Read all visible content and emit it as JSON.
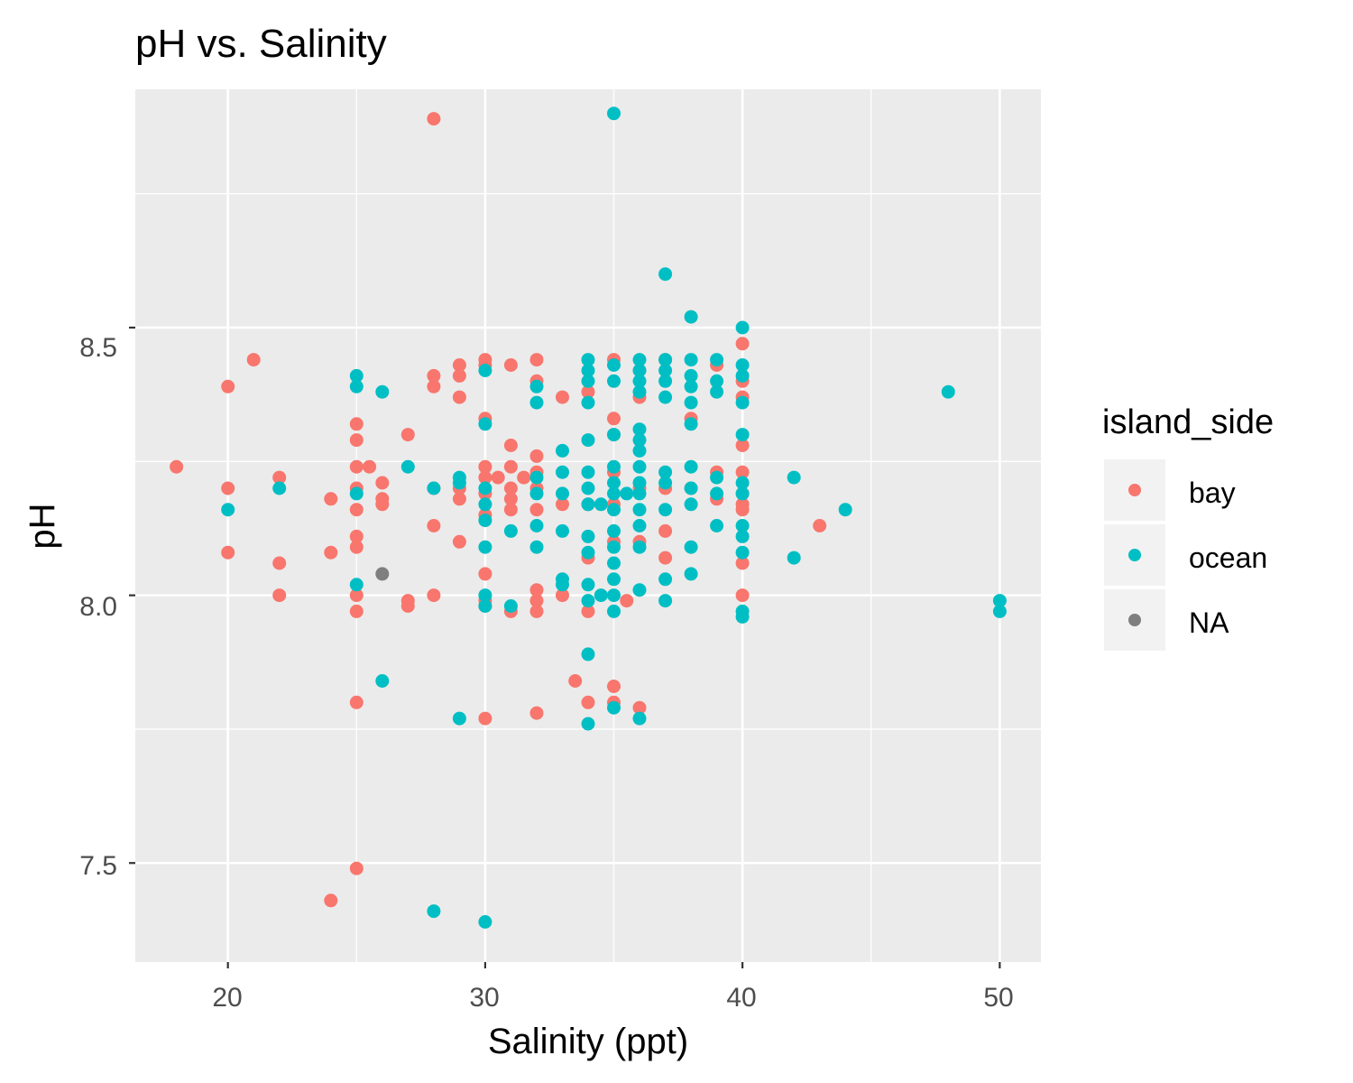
{
  "chart_data": {
    "type": "scatter",
    "title": "pH vs. Salinity",
    "xlabel": "Salinity (ppt)",
    "ylabel": "pH",
    "xlim": [
      16.4,
      51.6
    ],
    "ylim": [
      7.315,
      8.945
    ],
    "x_ticks": [
      "20",
      "30",
      "40",
      "50"
    ],
    "y_ticks": [
      "7.5",
      "8.0",
      "8.5"
    ],
    "x_tick_values": [
      20,
      30,
      40,
      50
    ],
    "y_tick_values": [
      7.5,
      8.0,
      8.5
    ],
    "grid": true,
    "panel_background": "#ebebeb",
    "legend": {
      "title": "island_side",
      "position": "right",
      "entries": [
        {
          "label": "bay",
          "color": "#f8766d"
        },
        {
          "label": "ocean",
          "color": "#00bfc4"
        },
        {
          "label": "NA",
          "color": "#7f7f7f"
        }
      ]
    },
    "series": [
      {
        "name": "bay",
        "color": "#f8766d",
        "points": [
          [
            18,
            8.24
          ],
          [
            20,
            8.39
          ],
          [
            20,
            8.2
          ],
          [
            20,
            8.08
          ],
          [
            21,
            8.44
          ],
          [
            22,
            8.22
          ],
          [
            22,
            8.06
          ],
          [
            22,
            8.0
          ],
          [
            24,
            8.18
          ],
          [
            24,
            8.08
          ],
          [
            24,
            7.43
          ],
          [
            25,
            8.32
          ],
          [
            25,
            8.29
          ],
          [
            25,
            8.24
          ],
          [
            25,
            8.2
          ],
          [
            25,
            8.16
          ],
          [
            25,
            8.11
          ],
          [
            25,
            8.09
          ],
          [
            25,
            8.0
          ],
          [
            25,
            7.97
          ],
          [
            25,
            7.8
          ],
          [
            25,
            7.49
          ],
          [
            25.5,
            8.24
          ],
          [
            26,
            8.21
          ],
          [
            26,
            8.18
          ],
          [
            26,
            8.17
          ],
          [
            27,
            8.3
          ],
          [
            27,
            7.99
          ],
          [
            27,
            7.98
          ],
          [
            28,
            8.89
          ],
          [
            28,
            8.41
          ],
          [
            28,
            8.39
          ],
          [
            28,
            8.2
          ],
          [
            28,
            8.13
          ],
          [
            28,
            8.0
          ],
          [
            29,
            8.43
          ],
          [
            29,
            8.41
          ],
          [
            29,
            8.37
          ],
          [
            29,
            8.2
          ],
          [
            29,
            8.18
          ],
          [
            29,
            8.1
          ],
          [
            30,
            8.44
          ],
          [
            30,
            8.43
          ],
          [
            30,
            8.33
          ],
          [
            30,
            8.24
          ],
          [
            30,
            8.22
          ],
          [
            30,
            8.19
          ],
          [
            30,
            8.15
          ],
          [
            30,
            8.04
          ],
          [
            30,
            7.99
          ],
          [
            30,
            7.98
          ],
          [
            30,
            7.77
          ],
          [
            30.5,
            8.22
          ],
          [
            31,
            8.43
          ],
          [
            31,
            8.28
          ],
          [
            31,
            8.24
          ],
          [
            31,
            8.2
          ],
          [
            31,
            8.18
          ],
          [
            31,
            8.16
          ],
          [
            31,
            7.97
          ],
          [
            31.5,
            8.22
          ],
          [
            32,
            8.44
          ],
          [
            32,
            8.4
          ],
          [
            32,
            8.26
          ],
          [
            32,
            8.23
          ],
          [
            32,
            8.2
          ],
          [
            32,
            8.16
          ],
          [
            32,
            8.01
          ],
          [
            32,
            7.99
          ],
          [
            32,
            7.97
          ],
          [
            32,
            7.78
          ],
          [
            33,
            8.37
          ],
          [
            33,
            8.17
          ],
          [
            33,
            8.0
          ],
          [
            33.5,
            7.84
          ],
          [
            34,
            8.38
          ],
          [
            34,
            8.17
          ],
          [
            34,
            8.07
          ],
          [
            34,
            7.97
          ],
          [
            34,
            7.8
          ],
          [
            35,
            8.44
          ],
          [
            35,
            8.33
          ],
          [
            35,
            8.3
          ],
          [
            35,
            8.23
          ],
          [
            35,
            8.17
          ],
          [
            35,
            8.1
          ],
          [
            35,
            7.83
          ],
          [
            35,
            7.8
          ],
          [
            35.5,
            7.99
          ],
          [
            36,
            8.42
          ],
          [
            36,
            8.37
          ],
          [
            36,
            8.2
          ],
          [
            36,
            8.1
          ],
          [
            36,
            7.79
          ],
          [
            37,
            8.44
          ],
          [
            37,
            8.2
          ],
          [
            37,
            8.12
          ],
          [
            37,
            8.07
          ],
          [
            38,
            8.33
          ],
          [
            38,
            8.2
          ],
          [
            39,
            8.43
          ],
          [
            39,
            8.23
          ],
          [
            39,
            8.18
          ],
          [
            40,
            8.47
          ],
          [
            40,
            8.4
          ],
          [
            40,
            8.37
          ],
          [
            40,
            8.28
          ],
          [
            40,
            8.23
          ],
          [
            40,
            8.19
          ],
          [
            40,
            8.17
          ],
          [
            40,
            8.16
          ],
          [
            40,
            8.06
          ],
          [
            40,
            8.0
          ],
          [
            43,
            8.13
          ]
        ]
      },
      {
        "name": "ocean",
        "color": "#00bfc4",
        "points": [
          [
            20,
            8.16
          ],
          [
            22,
            8.2
          ],
          [
            25,
            8.41
          ],
          [
            25,
            8.39
          ],
          [
            25,
            8.19
          ],
          [
            25,
            8.02
          ],
          [
            26,
            8.38
          ],
          [
            26,
            7.84
          ],
          [
            27,
            8.24
          ],
          [
            28,
            8.2
          ],
          [
            28,
            7.41
          ],
          [
            29,
            8.22
          ],
          [
            29,
            8.21
          ],
          [
            29,
            7.77
          ],
          [
            30,
            8.42
          ],
          [
            30,
            8.32
          ],
          [
            30,
            8.2
          ],
          [
            30,
            8.17
          ],
          [
            30,
            8.14
          ],
          [
            30,
            8.09
          ],
          [
            30,
            8.0
          ],
          [
            30,
            7.98
          ],
          [
            30,
            7.39
          ],
          [
            31,
            8.12
          ],
          [
            31,
            7.98
          ],
          [
            32,
            8.39
          ],
          [
            32,
            8.36
          ],
          [
            32,
            8.22
          ],
          [
            32,
            8.19
          ],
          [
            32,
            8.13
          ],
          [
            32,
            8.09
          ],
          [
            33,
            8.27
          ],
          [
            33,
            8.23
          ],
          [
            33,
            8.19
          ],
          [
            33,
            8.12
          ],
          [
            33,
            8.03
          ],
          [
            33,
            8.02
          ],
          [
            34,
            8.44
          ],
          [
            34,
            8.42
          ],
          [
            34,
            8.4
          ],
          [
            34,
            8.36
          ],
          [
            34,
            8.29
          ],
          [
            34,
            8.23
          ],
          [
            34,
            8.2
          ],
          [
            34,
            8.17
          ],
          [
            34,
            8.11
          ],
          [
            34,
            8.08
          ],
          [
            34,
            8.02
          ],
          [
            34,
            7.99
          ],
          [
            34,
            7.89
          ],
          [
            34,
            7.76
          ],
          [
            34.5,
            8.17
          ],
          [
            34.5,
            8.0
          ],
          [
            35,
            8.9
          ],
          [
            35,
            8.43
          ],
          [
            35,
            8.4
          ],
          [
            35,
            8.3
          ],
          [
            35,
            8.24
          ],
          [
            35,
            8.21
          ],
          [
            35,
            8.19
          ],
          [
            35,
            8.16
          ],
          [
            35,
            8.12
          ],
          [
            35,
            8.09
          ],
          [
            35,
            8.06
          ],
          [
            35,
            8.03
          ],
          [
            35,
            8.0
          ],
          [
            35,
            7.97
          ],
          [
            35,
            7.79
          ],
          [
            35.5,
            8.19
          ],
          [
            36,
            8.44
          ],
          [
            36,
            8.42
          ],
          [
            36,
            8.4
          ],
          [
            36,
            8.38
          ],
          [
            36,
            8.31
          ],
          [
            36,
            8.29
          ],
          [
            36,
            8.27
          ],
          [
            36,
            8.24
          ],
          [
            36,
            8.21
          ],
          [
            36,
            8.19
          ],
          [
            36,
            8.16
          ],
          [
            36,
            8.13
          ],
          [
            36,
            8.09
          ],
          [
            36,
            8.01
          ],
          [
            36,
            7.77
          ],
          [
            37,
            8.6
          ],
          [
            37,
            8.44
          ],
          [
            37,
            8.42
          ],
          [
            37,
            8.4
          ],
          [
            37,
            8.37
          ],
          [
            37,
            8.23
          ],
          [
            37,
            8.21
          ],
          [
            37,
            8.16
          ],
          [
            37,
            8.03
          ],
          [
            37,
            7.99
          ],
          [
            38,
            8.52
          ],
          [
            38,
            8.44
          ],
          [
            38,
            8.41
          ],
          [
            38,
            8.39
          ],
          [
            38,
            8.36
          ],
          [
            38,
            8.32
          ],
          [
            38,
            8.24
          ],
          [
            38,
            8.2
          ],
          [
            38,
            8.17
          ],
          [
            38,
            8.09
          ],
          [
            38,
            8.04
          ],
          [
            39,
            8.44
          ],
          [
            39,
            8.4
          ],
          [
            39,
            8.38
          ],
          [
            39,
            8.22
          ],
          [
            39,
            8.19
          ],
          [
            39,
            8.13
          ],
          [
            40,
            8.5
          ],
          [
            40,
            8.43
          ],
          [
            40,
            8.41
          ],
          [
            40,
            8.36
          ],
          [
            40,
            8.3
          ],
          [
            40,
            8.21
          ],
          [
            40,
            8.19
          ],
          [
            40,
            8.13
          ],
          [
            40,
            8.11
          ],
          [
            40,
            8.08
          ],
          [
            40,
            7.97
          ],
          [
            40,
            7.96
          ],
          [
            42,
            8.22
          ],
          [
            42,
            8.07
          ],
          [
            44,
            8.16
          ],
          [
            48,
            8.38
          ],
          [
            50,
            7.99
          ],
          [
            50,
            7.97
          ]
        ]
      },
      {
        "name": "NA",
        "color": "#7f7f7f",
        "points": [
          [
            26,
            8.04
          ]
        ]
      }
    ]
  }
}
